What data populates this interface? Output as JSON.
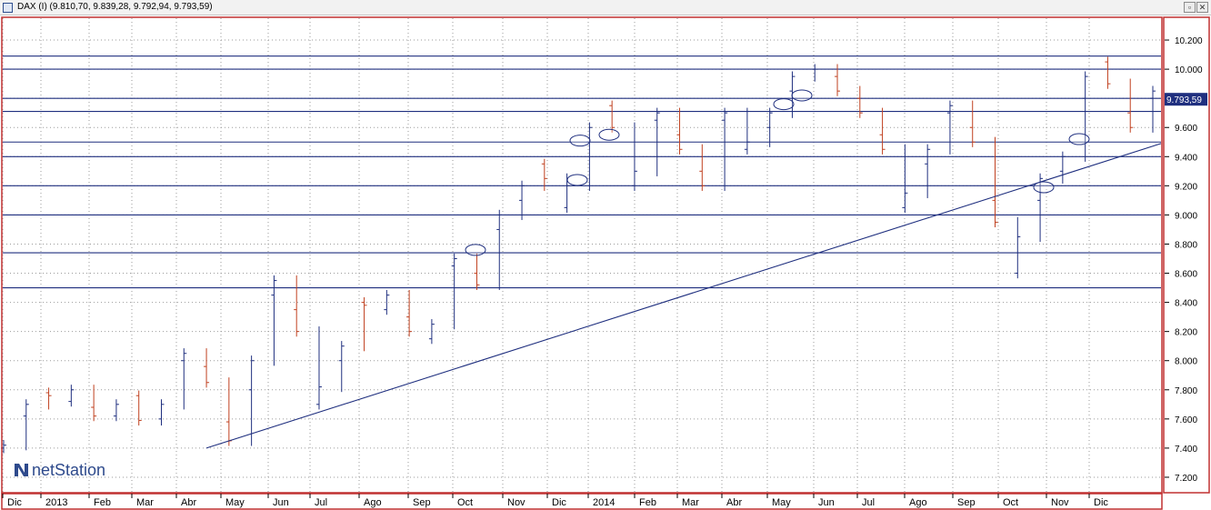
{
  "window": {
    "title": "DAX (I) (9.810,70, 9.839,28, 9.792,94, 9.793,59)",
    "minimize_glyph": "▫",
    "close_glyph": "✕"
  },
  "logo": {
    "text": "netStation",
    "color": "#2e4a8c"
  },
  "colors": {
    "frame": "#c03030",
    "up_bar": "#1f2f7f",
    "down_bar": "#c0401f",
    "hline": "#1f2f7f",
    "trendline": "#1f2f7f",
    "grid": "#9a9a9a",
    "price_box": "#1f2f7f"
  },
  "chart_data": {
    "type": "ohlc",
    "title": "DAX (I)",
    "ylim": [
      7100,
      10350
    ],
    "y_ticks": [
      7200,
      7400,
      7600,
      7800,
      8000,
      8200,
      8400,
      8600,
      8800,
      9000,
      9200,
      9400,
      9600,
      9800,
      10000,
      10200
    ],
    "y_tick_labels": [
      "7.200",
      "7.400",
      "7.600",
      "7.800",
      "8.000",
      "8.200",
      "8.400",
      "8.600",
      "8.800",
      "9.000",
      "9.200",
      "9.400",
      "9.600",
      "9.800",
      "10.000",
      "10.200"
    ],
    "x_labels": [
      "Dic",
      "2013",
      "Feb",
      "Mar",
      "Abr",
      "May",
      "Jun",
      "Jul",
      "Ago",
      "Sep",
      "Oct",
      "Nov",
      "Dic",
      "2014",
      "Feb",
      "Mar",
      "Abr",
      "May",
      "Jun",
      "Jul",
      "Ago",
      "Sep",
      "Oct",
      "Nov",
      "Dic"
    ],
    "last_price": 9793.59,
    "last_price_label": "9.793,59",
    "last_ohlc": {
      "open": 9810.7,
      "high": 9839.28,
      "low": 9792.94,
      "close": 9793.59
    },
    "series": [
      {
        "points": [
          [
            7400,
            7420
          ],
          [
            7620,
            7700
          ],
          [
            7780,
            7760
          ],
          [
            7720,
            7800
          ],
          [
            7680,
            7620
          ],
          [
            7620,
            7700
          ],
          [
            7760,
            7590
          ],
          [
            7600,
            7700
          ],
          [
            8000,
            8050
          ],
          [
            7960,
            7850
          ],
          [
            7580,
            7450
          ],
          [
            7800,
            8000
          ],
          [
            8450,
            8550
          ],
          [
            8350,
            8200
          ],
          [
            7700,
            7820
          ],
          [
            8000,
            8100
          ],
          [
            8400,
            8380
          ],
          [
            8350,
            8450
          ],
          [
            8300,
            8200
          ],
          [
            8150,
            8250
          ],
          [
            8650,
            8700
          ],
          [
            8600,
            8520
          ],
          [
            8900,
            9000
          ],
          [
            9100,
            9200
          ],
          [
            9350,
            9250
          ],
          [
            9050,
            9200
          ],
          [
            9500,
            9600
          ],
          [
            9750,
            9600
          ],
          [
            9200,
            9300
          ],
          [
            9650,
            9700
          ],
          [
            9550,
            9450
          ],
          [
            9300,
            9200
          ],
          [
            9650,
            9700
          ],
          [
            9450,
            9500
          ],
          [
            9600,
            9700
          ],
          [
            9850,
            9950
          ],
          [
            10000,
            10000
          ],
          [
            9950,
            9850
          ],
          [
            9800,
            9700
          ],
          [
            9550,
            9450
          ],
          [
            9050,
            9150
          ],
          [
            9350,
            9450
          ],
          [
            9700,
            9750
          ],
          [
            9600,
            9500
          ],
          [
            9100,
            8950
          ],
          [
            8600,
            8850
          ],
          [
            9100,
            9250
          ],
          [
            9300,
            9400
          ],
          [
            9800,
            9950
          ],
          [
            10050,
            9900
          ],
          [
            9700,
            9600
          ],
          [
            9800,
            9850
          ]
        ]
      }
    ],
    "horizontal_levels": [
      10090,
      10000,
      9800,
      9710,
      9500,
      9400,
      9200,
      9000,
      8740,
      8500
    ],
    "trendline": {
      "from": [
        "Abr 2013",
        7400
      ],
      "to": [
        "Dic 2014",
        9490
      ]
    },
    "marked_points": [
      [
        8760
      ],
      [
        9240
      ],
      [
        9510
      ],
      [
        9550
      ],
      [
        9760
      ],
      [
        9820
      ],
      [
        9190
      ],
      [
        9520
      ]
    ]
  }
}
